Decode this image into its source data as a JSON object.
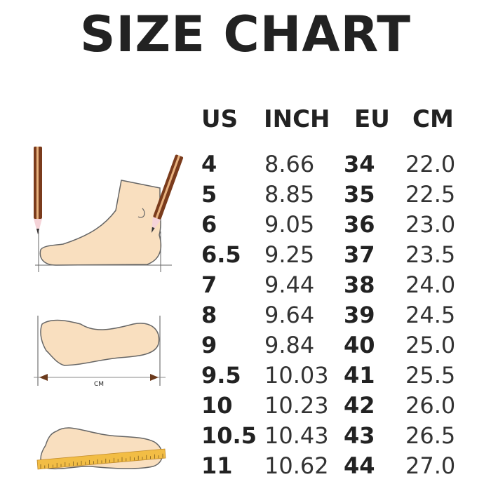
{
  "title": "SIZE CHART",
  "headers": [
    "US",
    "INCH",
    "EU",
    "CM"
  ],
  "rows": [
    {
      "us": "4",
      "inch": "8.66",
      "eu": "34",
      "cm": "22.0"
    },
    {
      "us": "5",
      "inch": "8.85",
      "eu": "35",
      "cm": "22.5"
    },
    {
      "us": "6",
      "inch": "9.05",
      "eu": "36",
      "cm": "23.0"
    },
    {
      "us": "6.5",
      "inch": "9.25",
      "eu": "37",
      "cm": "23.5"
    },
    {
      "us": "7",
      "inch": "9.44",
      "eu": "38",
      "cm": "24.0"
    },
    {
      "us": "8",
      "inch": "9.64",
      "eu": "39",
      "cm": "24.5"
    },
    {
      "us": "9",
      "inch": "9.84",
      "eu": "40",
      "cm": "25.0"
    },
    {
      "us": "9.5",
      "inch": "10.03",
      "eu": "41",
      "cm": "25.5"
    },
    {
      "us": "10",
      "inch": "10.23",
      "eu": "42",
      "cm": "26.0"
    },
    {
      "us": "10.5",
      "inch": "10.43",
      "eu": "43",
      "cm": "26.5"
    },
    {
      "us": "11",
      "inch": "10.62",
      "eu": "44",
      "cm": "27.0"
    }
  ],
  "illustration": {
    "measure_label": "CM",
    "skin_color": "#f9dfbf",
    "outline_color": "#666666",
    "pencil_color": "#7a3b1c",
    "ruler_color": "#f2bd45"
  }
}
